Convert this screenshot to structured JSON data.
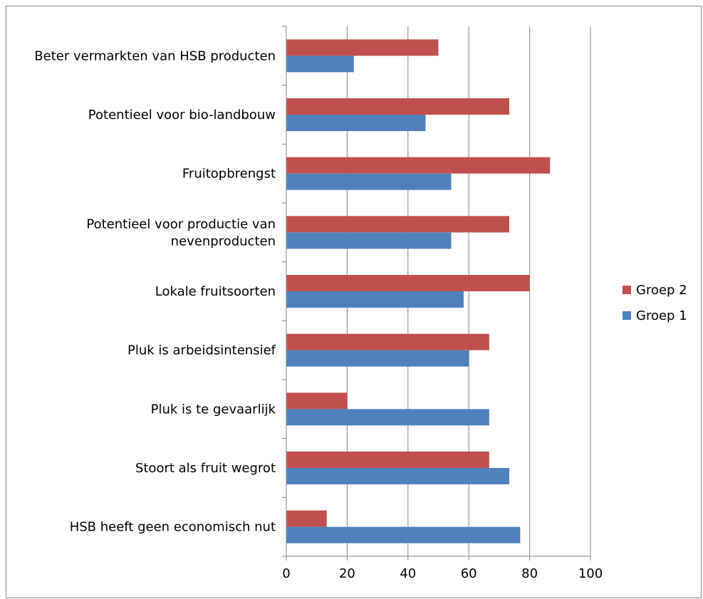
{
  "chart_data": {
    "type": "bar",
    "orientation": "horizontal",
    "categories": [
      "Beter vermarkten van HSB producten",
      "Potentieel voor bio-landbouw",
      "Fruitopbrengst",
      "Potentieel voor productie van nevenproducten",
      "Lokale fruitsoorten",
      "Pluk is arbeidsintensief",
      "Pluk is te gevaarlijk",
      "Stoort als fruit wegrot",
      "HSB heeft geen economisch nut"
    ],
    "category_lines": [
      [
        "Beter vermarkten van HSB producten"
      ],
      [
        "Potentieel voor bio-landbouw"
      ],
      [
        "Fruitopbrengst"
      ],
      [
        "Potentieel voor productie van",
        "nevenproducten"
      ],
      [
        "Lokale fruitsoorten"
      ],
      [
        "Pluk is arbeidsintensief"
      ],
      [
        "Pluk is te gevaarlijk"
      ],
      [
        "Stoort als fruit wegrot"
      ],
      [
        "HSB heeft geen economisch nut"
      ]
    ],
    "series": [
      {
        "name": "Groep 2",
        "color": "#C0504D",
        "values": [
          50,
          73.3,
          86.7,
          73.3,
          80,
          66.7,
          20,
          66.7,
          13.3
        ]
      },
      {
        "name": "Groep 1",
        "color": "#4F81BD",
        "values": [
          22.2,
          45.8,
          54.2,
          54.2,
          58.3,
          60,
          66.7,
          73.3,
          76.9
        ]
      }
    ],
    "xlim": [
      0,
      100
    ],
    "xticks": [
      0,
      20,
      40,
      60,
      80,
      100
    ],
    "grid": true,
    "legend": {
      "position": "right",
      "entries": [
        "Groep 2",
        "Groep 1"
      ]
    },
    "title": "",
    "xlabel": "",
    "ylabel": ""
  }
}
